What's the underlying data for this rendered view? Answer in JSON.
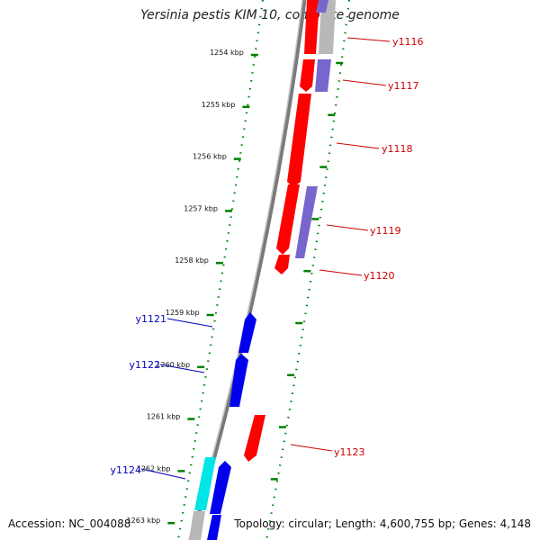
{
  "title": "Yersinia pestis KIM 10, complete genome",
  "footer": {
    "accession": "Accession: NC_004088",
    "topology": "Topology: circular; Length: 4,600,755 bp; Genes: 4,148"
  },
  "colors": {
    "forward_gene": "#ff0000",
    "forward_alt": "#7766cc",
    "reverse_gene": "#0000ee",
    "reverse_alt": "#00e5e5",
    "pseudo": "#b8b8b8",
    "ticks": "#008000",
    "backbone": "#7a7a7a",
    "forward_label": "#cc0000",
    "reverse_label": "#0000bb"
  },
  "scale": {
    "ticks": [
      "1254 kbp",
      "1255 kbp",
      "1256 kbp",
      "1257 kbp",
      "1258 kbp",
      "1259 kbp",
      "1260 kbp",
      "1261 kbp",
      "1262 kbp",
      "1263 kbp"
    ]
  },
  "genes": [
    {
      "id": "y1116",
      "label": "y1116",
      "strand": "forward"
    },
    {
      "id": "y1117",
      "label": "y1117",
      "strand": "forward"
    },
    {
      "id": "y1118",
      "label": "y1118",
      "strand": "forward"
    },
    {
      "id": "y1119",
      "label": "y1119",
      "strand": "forward"
    },
    {
      "id": "y1120",
      "label": "y1120",
      "strand": "forward"
    },
    {
      "id": "y1121",
      "label": "y1121",
      "strand": "reverse"
    },
    {
      "id": "y1122",
      "label": "y1122",
      "strand": "reverse"
    },
    {
      "id": "y1123",
      "label": "y1123",
      "strand": "forward"
    },
    {
      "id": "y1124",
      "label": "y1124",
      "strand": "reverse"
    }
  ]
}
